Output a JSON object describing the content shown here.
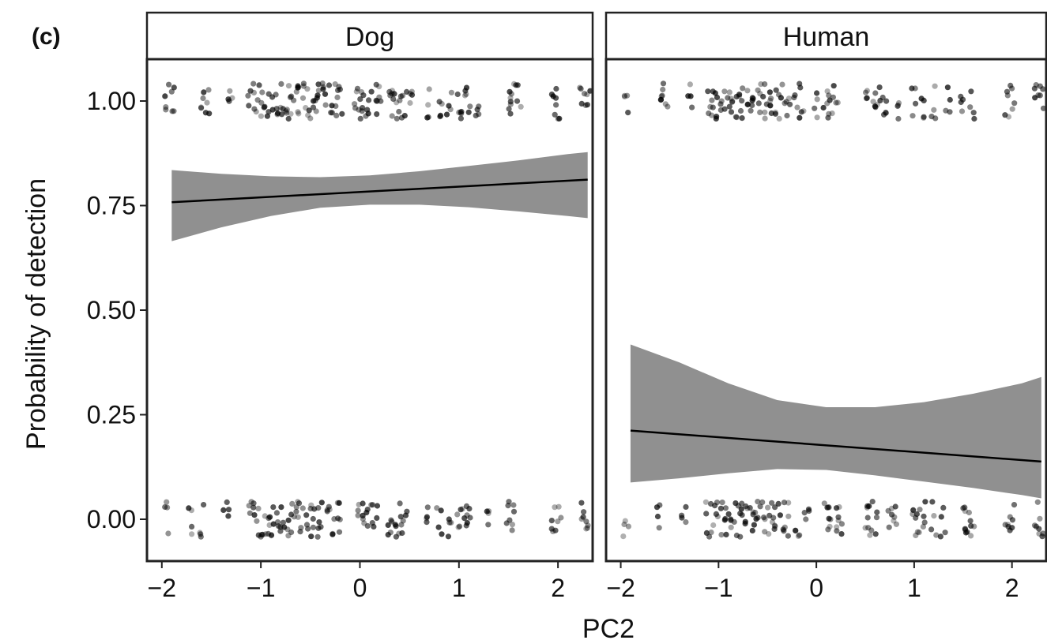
{
  "figure": {
    "panel_tag": "(c)"
  },
  "chart_data": {
    "type": "scatter",
    "xlabel": "PC2",
    "ylabel": "Probability of detection",
    "xlim": [
      -2.15,
      2.35
    ],
    "ylim": [
      -0.1,
      1.1
    ],
    "x_ticks": [
      -2,
      -1,
      0,
      1,
      2
    ],
    "x_tick_labels": [
      "−2",
      "−1",
      "0",
      "1",
      "2"
    ],
    "y_ticks": [
      0.0,
      0.25,
      0.5,
      0.75,
      1.0
    ],
    "y_tick_labels": [
      "0.00",
      "0.25",
      "0.50",
      "0.75",
      "1.00"
    ],
    "grid": false,
    "colors": {
      "points": "#000000",
      "ribbon": "#909090",
      "line": "#000000",
      "strip_fill": "#ffffff",
      "border": "#222222"
    },
    "panels": [
      {
        "facet": "Dog",
        "points_1": [
          -1.95,
          -1.9,
          -1.6,
          -1.55,
          -1.3,
          -1.1,
          -1.05,
          -1.0,
          -0.95,
          -0.9,
          -0.85,
          -0.8,
          -0.75,
          -0.7,
          -0.65,
          -0.6,
          -0.55,
          -0.5,
          -0.45,
          -0.4,
          -0.35,
          -0.3,
          -0.25,
          -0.2,
          -0.05,
          0.0,
          0.05,
          0.1,
          0.15,
          0.2,
          0.3,
          0.35,
          0.4,
          0.45,
          0.5,
          0.7,
          0.8,
          0.9,
          1.0,
          1.05,
          1.1,
          1.2,
          1.5,
          1.55,
          1.6,
          1.95,
          2.0,
          2.25,
          2.3
        ],
        "points_0": [
          -1.95,
          -1.7,
          -1.6,
          -1.35,
          -1.1,
          -1.05,
          -1.0,
          -0.95,
          -0.9,
          -0.85,
          -0.8,
          -0.75,
          -0.7,
          -0.65,
          -0.6,
          -0.55,
          -0.5,
          -0.45,
          -0.4,
          -0.3,
          -0.25,
          -0.2,
          0.0,
          0.05,
          0.1,
          0.15,
          0.3,
          0.35,
          0.4,
          0.45,
          0.7,
          0.8,
          0.9,
          1.0,
          1.05,
          1.1,
          1.3,
          1.5,
          1.55,
          1.95,
          2.0,
          2.25,
          2.3
        ],
        "fit": {
          "x": [
            -1.9,
            2.3
          ],
          "y": [
            0.758,
            0.812
          ]
        },
        "ribbon": {
          "x": [
            -1.9,
            -1.4,
            -0.9,
            -0.4,
            0.1,
            0.6,
            1.1,
            1.6,
            2.1,
            2.3
          ],
          "lower": [
            0.665,
            0.698,
            0.725,
            0.745,
            0.752,
            0.752,
            0.746,
            0.736,
            0.725,
            0.72
          ],
          "upper": [
            0.835,
            0.826,
            0.82,
            0.818,
            0.822,
            0.832,
            0.845,
            0.858,
            0.873,
            0.878
          ]
        }
      },
      {
        "facet": "Human",
        "points_1": [
          -1.95,
          -1.6,
          -1.55,
          -1.3,
          -1.1,
          -1.05,
          -1.0,
          -0.95,
          -0.9,
          -0.85,
          -0.8,
          -0.75,
          -0.7,
          -0.65,
          -0.6,
          -0.55,
          -0.5,
          -0.45,
          -0.4,
          -0.35,
          -0.3,
          -0.2,
          -0.15,
          0.0,
          0.1,
          0.15,
          0.2,
          0.5,
          0.6,
          0.65,
          0.7,
          0.85,
          1.0,
          1.1,
          1.2,
          1.35,
          1.5,
          1.6,
          1.95,
          2.0,
          2.25,
          2.3
        ],
        "points_0": [
          -1.95,
          -1.6,
          -1.35,
          -1.1,
          -1.05,
          -1.0,
          -0.95,
          -0.9,
          -0.85,
          -0.8,
          -0.75,
          -0.7,
          -0.65,
          -0.6,
          -0.55,
          -0.5,
          -0.45,
          -0.4,
          -0.35,
          -0.3,
          -0.2,
          -0.1,
          0.1,
          0.15,
          0.2,
          0.25,
          0.5,
          0.55,
          0.6,
          0.75,
          0.8,
          1.0,
          1.05,
          1.1,
          1.2,
          1.3,
          1.5,
          1.55,
          1.6,
          1.95,
          2.0,
          2.25,
          2.3
        ],
        "fit": {
          "x": [
            -1.9,
            2.3
          ],
          "y": [
            0.212,
            0.138
          ]
        },
        "ribbon": {
          "x": [
            -1.9,
            -1.4,
            -0.9,
            -0.4,
            0.1,
            0.6,
            1.1,
            1.6,
            2.1,
            2.3
          ],
          "lower": [
            0.088,
            0.098,
            0.11,
            0.12,
            0.118,
            0.105,
            0.09,
            0.075,
            0.058,
            0.05
          ],
          "upper": [
            0.418,
            0.375,
            0.325,
            0.285,
            0.268,
            0.268,
            0.28,
            0.3,
            0.325,
            0.34
          ]
        }
      }
    ]
  }
}
